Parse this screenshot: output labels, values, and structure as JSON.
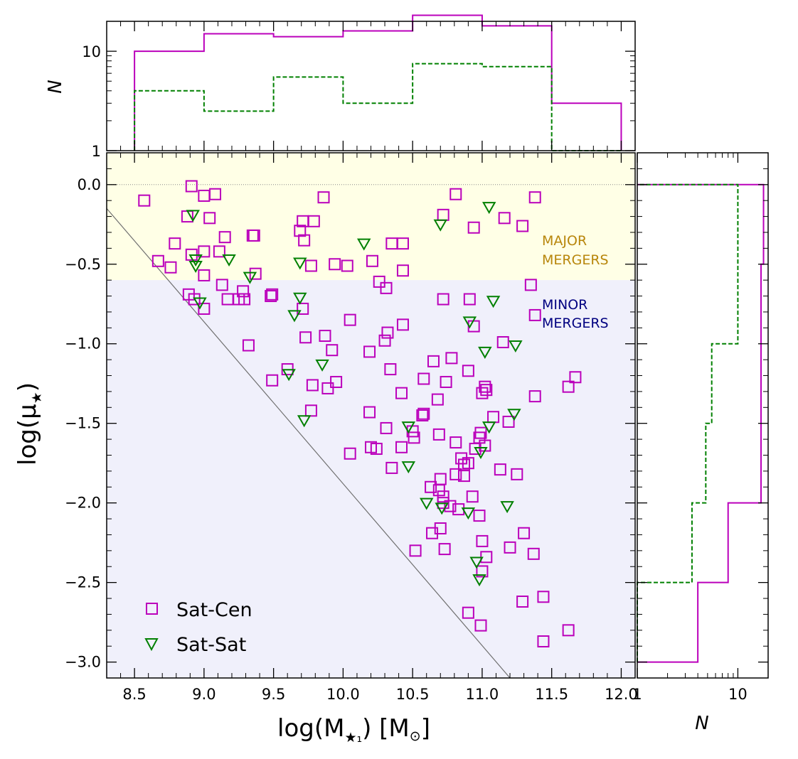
{
  "chart_data": {
    "type": "scatter",
    "xlabel": "log(M",
    "xlabel_sub": "★₁",
    "xlabel_unit": ") [M",
    "xlabel_unit_sub": "⊙",
    "xlabel_end": "]",
    "ylabel": "log(μ",
    "ylabel_sub": "★",
    "ylabel_end": ")",
    "xlim": [
      8.3,
      12.1
    ],
    "ylim": [
      -3.1,
      0.2
    ],
    "xticks": [
      {
        "v": 8.5,
        "label": "8.5"
      },
      {
        "v": 9.0,
        "label": "9.0"
      },
      {
        "v": 9.5,
        "label": "9.5"
      },
      {
        "v": 10.0,
        "label": "10.0"
      },
      {
        "v": 10.5,
        "label": "10.5"
      },
      {
        "v": 11.0,
        "label": "11.0"
      },
      {
        "v": 11.5,
        "label": "11.5"
      },
      {
        "v": 12.0,
        "label": "12.0"
      }
    ],
    "yticks": [
      {
        "v": 0.0,
        "label": "0.0"
      },
      {
        "v": -0.5,
        "label": "−0.5"
      },
      {
        "v": -1.0,
        "label": "−1.0"
      },
      {
        "v": -1.5,
        "label": "−1.5"
      },
      {
        "v": -2.0,
        "label": "−2.0"
      },
      {
        "v": -2.5,
        "label": "−2.5"
      },
      {
        "v": -3.0,
        "label": "−3.0"
      }
    ],
    "major_region": {
      "y_from": -0.6,
      "y_to": 0.2,
      "color": "#ffffe6",
      "label_line1": "MAJOR",
      "label_line2": "MERGERS",
      "label_color": "#b8860b"
    },
    "minor_region": {
      "y_from": -3.1,
      "y_to": -0.6,
      "color": "#f0f0fb",
      "label_line1": "MINOR",
      "label_line2": "MERGERS",
      "label_color": "#000080"
    },
    "reference_line": {
      "x": [
        8.3,
        11.2
      ],
      "y": [
        -0.15,
        -3.1
      ],
      "color": "#707070"
    },
    "zero_line": {
      "y": 0.0
    },
    "legend": {
      "position": "lower-left"
    },
    "series": [
      {
        "name": "Sat-Cen",
        "marker": "square",
        "color": "#bb00bb",
        "points": [
          [
            8.57,
            -0.1
          ],
          [
            8.91,
            -0.01
          ],
          [
            9.0,
            -0.07
          ],
          [
            9.08,
            -0.06
          ],
          [
            9.86,
            -0.08
          ],
          [
            10.81,
            -0.06
          ],
          [
            11.38,
            -0.08
          ],
          [
            8.88,
            -0.2
          ],
          [
            9.04,
            -0.21
          ],
          [
            9.71,
            -0.23
          ],
          [
            9.79,
            -0.23
          ],
          [
            10.72,
            -0.19
          ],
          [
            10.94,
            -0.27
          ],
          [
            11.16,
            -0.21
          ],
          [
            11.29,
            -0.26
          ],
          [
            9.15,
            -0.33
          ],
          [
            9.35,
            -0.32
          ],
          [
            9.36,
            -0.32
          ],
          [
            9.69,
            -0.29
          ],
          [
            9.72,
            -0.35
          ],
          [
            8.79,
            -0.37
          ],
          [
            10.35,
            -0.37
          ],
          [
            10.43,
            -0.37
          ],
          [
            8.91,
            -0.44
          ],
          [
            9.0,
            -0.42
          ],
          [
            9.11,
            -0.42
          ],
          [
            8.67,
            -0.48
          ],
          [
            8.76,
            -0.52
          ],
          [
            9.0,
            -0.57
          ],
          [
            9.37,
            -0.56
          ],
          [
            9.77,
            -0.51
          ],
          [
            9.94,
            -0.5
          ],
          [
            10.03,
            -0.51
          ],
          [
            10.21,
            -0.48
          ],
          [
            10.43,
            -0.54
          ],
          [
            10.26,
            -0.61
          ],
          [
            10.31,
            -0.65
          ],
          [
            9.13,
            -0.63
          ],
          [
            8.89,
            -0.69
          ],
          [
            8.93,
            -0.72
          ],
          [
            9.0,
            -0.78
          ],
          [
            9.17,
            -0.72
          ],
          [
            9.25,
            -0.72
          ],
          [
            9.28,
            -0.67
          ],
          [
            9.29,
            -0.72
          ],
          [
            9.48,
            -0.7
          ],
          [
            9.49,
            -0.69
          ],
          [
            9.71,
            -0.78
          ],
          [
            10.72,
            -0.72
          ],
          [
            10.91,
            -0.72
          ],
          [
            11.35,
            -0.63
          ],
          [
            11.38,
            -0.82
          ],
          [
            9.73,
            -0.96
          ],
          [
            9.87,
            -0.95
          ],
          [
            9.92,
            -1.04
          ],
          [
            10.05,
            -0.85
          ],
          [
            10.32,
            -0.93
          ],
          [
            10.3,
            -0.98
          ],
          [
            10.43,
            -0.88
          ],
          [
            10.94,
            -0.89
          ],
          [
            11.15,
            -0.99
          ],
          [
            9.32,
            -1.01
          ],
          [
            9.49,
            -1.23
          ],
          [
            9.6,
            -1.16
          ],
          [
            9.78,
            -1.26
          ],
          [
            9.89,
            -1.28
          ],
          [
            9.95,
            -1.24
          ],
          [
            10.34,
            -1.16
          ],
          [
            10.19,
            -1.05
          ],
          [
            10.42,
            -1.31
          ],
          [
            10.58,
            -1.22
          ],
          [
            10.65,
            -1.11
          ],
          [
            10.68,
            -1.35
          ],
          [
            10.74,
            -1.24
          ],
          [
            10.78,
            -1.09
          ],
          [
            10.9,
            -1.17
          ],
          [
            11.02,
            -1.27
          ],
          [
            11.03,
            -1.29
          ],
          [
            11.0,
            -1.31
          ],
          [
            11.38,
            -1.33
          ],
          [
            11.62,
            -1.27
          ],
          [
            11.67,
            -1.21
          ],
          [
            9.77,
            -1.42
          ],
          [
            10.19,
            -1.43
          ],
          [
            10.31,
            -1.53
          ],
          [
            10.5,
            -1.55
          ],
          [
            10.51,
            -1.59
          ],
          [
            10.57,
            -1.45
          ],
          [
            10.58,
            -1.44
          ],
          [
            10.69,
            -1.57
          ],
          [
            10.81,
            -1.62
          ],
          [
            10.99,
            -1.56
          ],
          [
            10.98,
            -1.59
          ],
          [
            11.08,
            -1.46
          ],
          [
            11.19,
            -1.49
          ],
          [
            10.05,
            -1.69
          ],
          [
            10.2,
            -1.65
          ],
          [
            10.24,
            -1.66
          ],
          [
            10.35,
            -1.78
          ],
          [
            10.42,
            -1.65
          ],
          [
            10.7,
            -1.85
          ],
          [
            10.81,
            -1.82
          ],
          [
            10.87,
            -1.76
          ],
          [
            10.87,
            -1.83
          ],
          [
            10.85,
            -1.72
          ],
          [
            10.9,
            -1.75
          ],
          [
            10.95,
            -1.66
          ],
          [
            11.02,
            -1.64
          ],
          [
            11.13,
            -1.79
          ],
          [
            11.25,
            -1.82
          ],
          [
            10.63,
            -1.9
          ],
          [
            10.69,
            -1.92
          ],
          [
            10.72,
            -1.96
          ],
          [
            10.72,
            -2.0
          ],
          [
            10.77,
            -2.02
          ],
          [
            10.83,
            -2.04
          ],
          [
            10.93,
            -1.96
          ],
          [
            10.98,
            -2.08
          ],
          [
            10.52,
            -2.3
          ],
          [
            10.64,
            -2.19
          ],
          [
            10.7,
            -2.16
          ],
          [
            10.73,
            -2.29
          ],
          [
            11.0,
            -2.24
          ],
          [
            11.03,
            -2.34
          ],
          [
            11.0,
            -2.43
          ],
          [
            11.2,
            -2.28
          ],
          [
            11.3,
            -2.19
          ],
          [
            11.37,
            -2.32
          ],
          [
            10.9,
            -2.69
          ],
          [
            10.99,
            -2.77
          ],
          [
            11.29,
            -2.62
          ],
          [
            11.44,
            -2.59
          ],
          [
            11.44,
            -2.87
          ],
          [
            11.62,
            -2.8
          ]
        ]
      },
      {
        "name": "Sat-Sat",
        "marker": "triangle-down",
        "color": "#008000",
        "points": [
          [
            8.92,
            -0.19
          ],
          [
            10.7,
            -0.25
          ],
          [
            11.05,
            -0.14
          ],
          [
            10.15,
            -0.37
          ],
          [
            8.94,
            -0.47
          ],
          [
            8.94,
            -0.51
          ],
          [
            9.18,
            -0.47
          ],
          [
            9.33,
            -0.58
          ],
          [
            9.69,
            -0.49
          ],
          [
            8.97,
            -0.74
          ],
          [
            9.65,
            -0.82
          ],
          [
            9.69,
            -0.71
          ],
          [
            10.91,
            -0.86
          ],
          [
            11.08,
            -0.73
          ],
          [
            11.02,
            -1.05
          ],
          [
            11.24,
            -1.01
          ],
          [
            9.61,
            -1.19
          ],
          [
            9.85,
            -1.13
          ],
          [
            9.72,
            -1.48
          ],
          [
            10.47,
            -1.52
          ],
          [
            10.47,
            -1.77
          ],
          [
            10.99,
            -1.68
          ],
          [
            11.05,
            -1.52
          ],
          [
            11.23,
            -1.44
          ],
          [
            10.6,
            -2.0
          ],
          [
            10.71,
            -2.03
          ],
          [
            10.9,
            -2.06
          ],
          [
            11.18,
            -2.02
          ],
          [
            10.96,
            -2.37
          ],
          [
            10.98,
            -2.48
          ]
        ]
      }
    ],
    "legend_entries": [
      "Sat-Cen",
      "Sat-Sat"
    ],
    "top_histogram": {
      "ylabel": "N",
      "ylim": [
        1,
        20
      ],
      "yticks": [
        {
          "v": 1,
          "label": "1"
        },
        {
          "v": 10,
          "label": "10"
        }
      ],
      "bin_edges": [
        8.5,
        9.0,
        9.5,
        10.0,
        10.5,
        11.0,
        11.5,
        12.0
      ],
      "series": [
        {
          "name": "Sat-Cen",
          "values": [
            10,
            15,
            14,
            16,
            23,
            18,
            3
          ],
          "color": "#bb00bb",
          "style": "solid"
        },
        {
          "name": "Sat-Sat",
          "values": [
            4,
            2.5,
            5.5,
            3,
            7.5,
            7,
            0
          ],
          "color": "#008000",
          "style": "dashed"
        }
      ]
    },
    "right_histogram": {
      "xlabel": "N",
      "xlim": [
        1,
        20
      ],
      "xticks": [
        {
          "v": 1,
          "label": "1"
        },
        {
          "v": 10,
          "label": "10"
        }
      ],
      "bin_edges": [
        -3.0,
        -2.5,
        -2.0,
        -1.5,
        -1.0,
        -0.5,
        0.0
      ],
      "series": [
        {
          "name": "Sat-Cen",
          "values": [
            4,
            8,
            17,
            17,
            17,
            18
          ],
          "color": "#bb00bb",
          "style": "solid"
        },
        {
          "name": "Sat-Sat",
          "values": [
            0,
            3.5,
            4.8,
            5.5,
            10,
            10
          ],
          "color": "#008000",
          "style": "dashed"
        }
      ]
    }
  }
}
